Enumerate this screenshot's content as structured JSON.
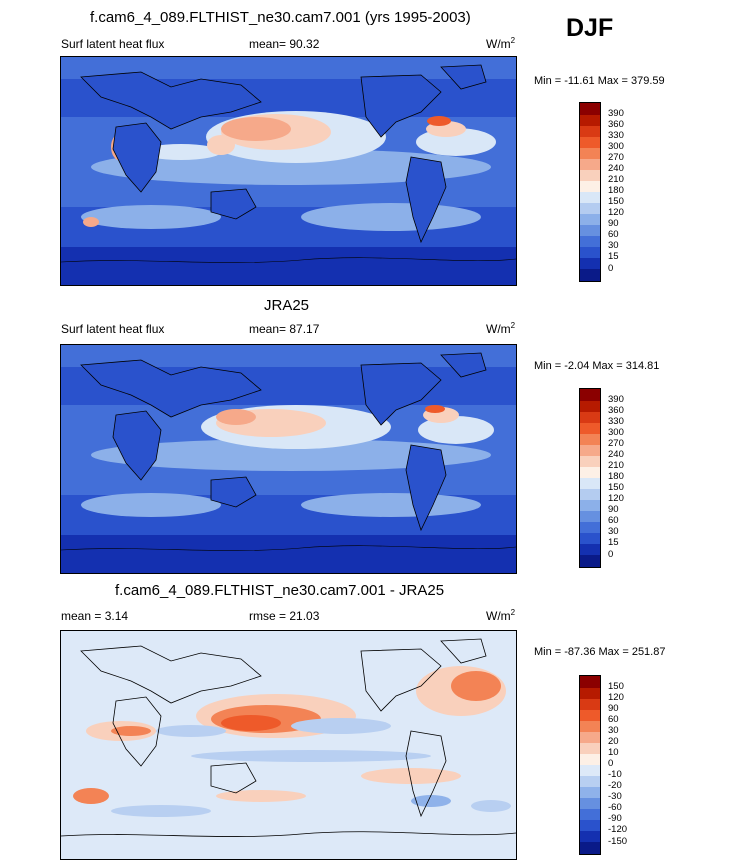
{
  "season": "DJF",
  "panels": [
    {
      "title": "f.cam6_4_089.FLTHIST_ne30.cam7.001 (yrs 1995-2003)",
      "left_label": "Surf latent heat flux",
      "center_label": "mean=  90.32",
      "units": "W/m",
      "units_sup": "2",
      "minmax": "Min = -11.61 Max = 379.59",
      "colorbar_labels": [
        "390",
        "360",
        "330",
        "300",
        "270",
        "240",
        "210",
        "180",
        "150",
        "120",
        "90",
        "60",
        "30",
        "15",
        "0"
      ],
      "colorbar_colors": [
        "#8b0000",
        "#b61a00",
        "#d93a14",
        "#ee5a2a",
        "#f38355",
        "#f6a98a",
        "#f9d0bc",
        "#fdf0e6",
        "#d9e7f7",
        "#b4ccf0",
        "#8cb0e9",
        "#6690e0",
        "#436fd8",
        "#2a52cc",
        "#1430b0",
        "#0a1a88"
      ]
    },
    {
      "title": "JRA25",
      "left_label": "Surf latent heat flux",
      "center_label": "mean=  87.17",
      "units": "W/m",
      "units_sup": "2",
      "minmax": "Min =  -2.04 Max = 314.81",
      "colorbar_labels": [
        "390",
        "360",
        "330",
        "300",
        "270",
        "240",
        "210",
        "180",
        "150",
        "120",
        "90",
        "60",
        "30",
        "15",
        "0"
      ],
      "colorbar_colors": [
        "#8b0000",
        "#b61a00",
        "#d93a14",
        "#ee5a2a",
        "#f38355",
        "#f6a98a",
        "#f9d0bc",
        "#fdf0e6",
        "#d9e7f7",
        "#b4ccf0",
        "#8cb0e9",
        "#6690e0",
        "#436fd8",
        "#2a52cc",
        "#1430b0",
        "#0a1a88"
      ]
    },
    {
      "title": "f.cam6_4_089.FLTHIST_ne30.cam7.001 - JRA25",
      "left_label": "mean =   3.14",
      "center_label": "rmse =  21.03",
      "units": "W/m",
      "units_sup": "2",
      "minmax": "Min = -87.36 Max = 251.87",
      "colorbar_labels": [
        "150",
        "120",
        "90",
        "60",
        "30",
        "20",
        "10",
        "0",
        "-10",
        "-20",
        "-30",
        "-60",
        "-90",
        "-120",
        "-150"
      ],
      "colorbar_colors": [
        "#8b0000",
        "#b61a00",
        "#d93a14",
        "#ee5a2a",
        "#f38355",
        "#f6a98a",
        "#f9d0bc",
        "#fdf0e6",
        "#dde9f8",
        "#b8cff1",
        "#8fb2ea",
        "#6690e0",
        "#436fd8",
        "#2a52cc",
        "#1430b0",
        "#0a1a88"
      ]
    }
  ],
  "map_colors": {
    "deep": "#2a52cc",
    "mid": "#436fd8",
    "light": "#8cb0e9",
    "pale": "#d9e7f7",
    "warm1": "#f6a98a",
    "warm2": "#ee5a2a",
    "hot": "#b61a00",
    "land_line": "#000000"
  }
}
